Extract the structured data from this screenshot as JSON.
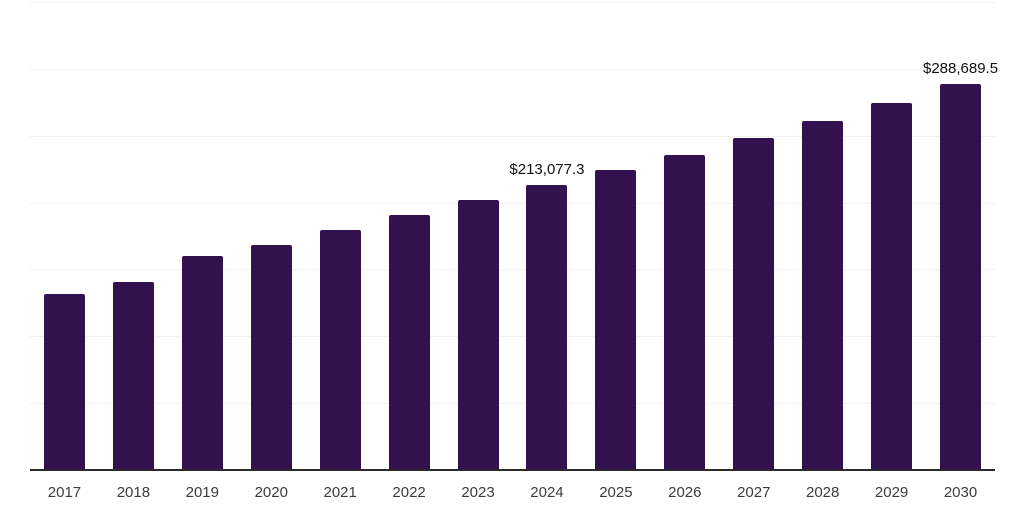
{
  "chart_data": {
    "type": "bar",
    "title": "",
    "xlabel": "",
    "ylabel": "",
    "categories": [
      "2017",
      "2018",
      "2019",
      "2020",
      "2021",
      "2022",
      "2023",
      "2024",
      "2025",
      "2026",
      "2027",
      "2028",
      "2029",
      "2030"
    ],
    "values": [
      131600,
      140600,
      160400,
      168300,
      179500,
      190500,
      201900,
      213077.3,
      224100,
      235800,
      248000,
      260900,
      274400,
      288689.5
    ],
    "ylim": [
      0,
      350000
    ],
    "grid": true,
    "grid_step": 50000,
    "y_tick_labels_visible": false,
    "legend": "none",
    "annotations": [
      {
        "category": "2024",
        "text": "$213,077.3"
      },
      {
        "category": "2030",
        "text": "$288,689.5"
      }
    ]
  },
  "colors": {
    "bar": "#33114F",
    "axis": "#2b2b2b",
    "gridline": "#f2f2f2",
    "tick_label": "#3c3c3c",
    "data_label": "#111111",
    "background": "#ffffff"
  }
}
